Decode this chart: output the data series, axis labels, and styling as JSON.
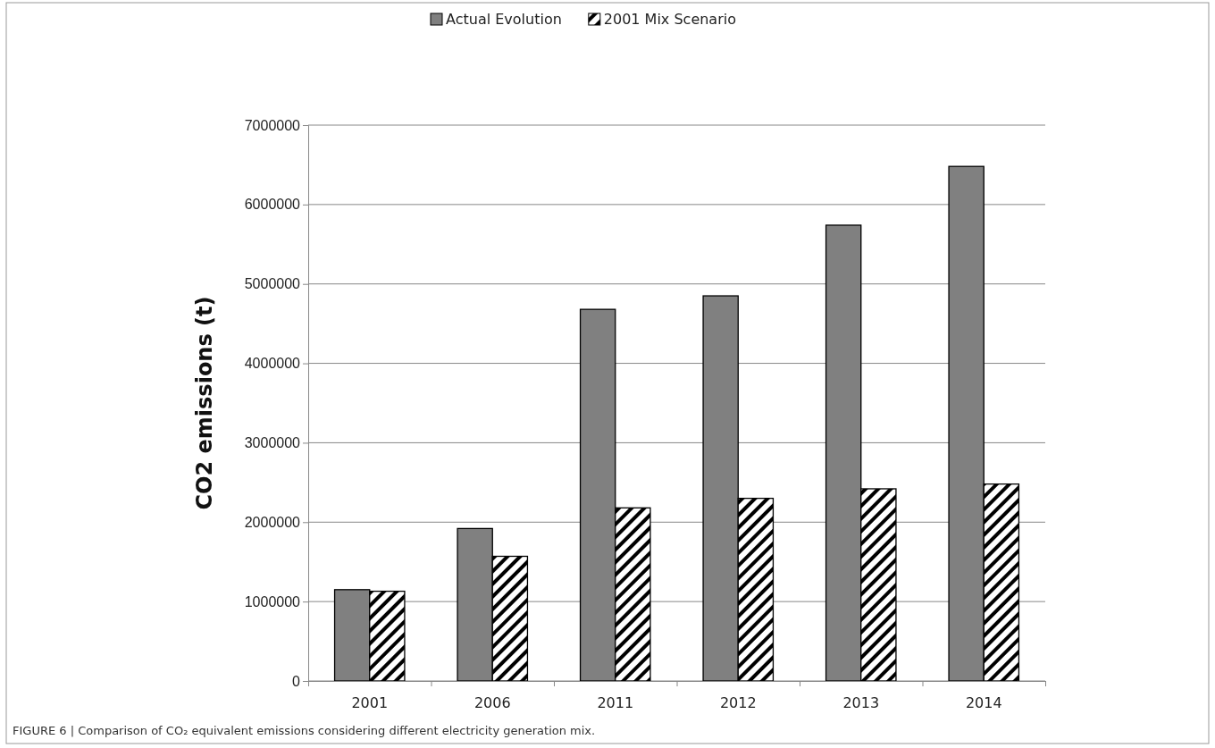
{
  "chart_data": {
    "type": "bar",
    "ylabel": "CO2 emissions (t)",
    "categories": [
      "2001",
      "2006",
      "2011",
      "2012",
      "2013",
      "2014"
    ],
    "series": [
      {
        "name": "Actual Evolution",
        "color": "#808080",
        "values": [
          1150000,
          1920000,
          4680000,
          4850000,
          5740000,
          6480000
        ]
      },
      {
        "name": "2001 Mix Scenario",
        "color": "#000000",
        "values": [
          1130000,
          1570000,
          2180000,
          2300000,
          2420000,
          2480000
        ]
      }
    ],
    "ylim": [
      0,
      7000000
    ],
    "yticks": [
      0,
      1000000,
      2000000,
      3000000,
      4000000,
      5000000,
      6000000,
      7000000
    ],
    "grid": "y",
    "legend": "top",
    "annotations": [
      "FIGURE 6 | Comparison of CO₂ equivalent emissions considering different electricity generation mix."
    ]
  }
}
